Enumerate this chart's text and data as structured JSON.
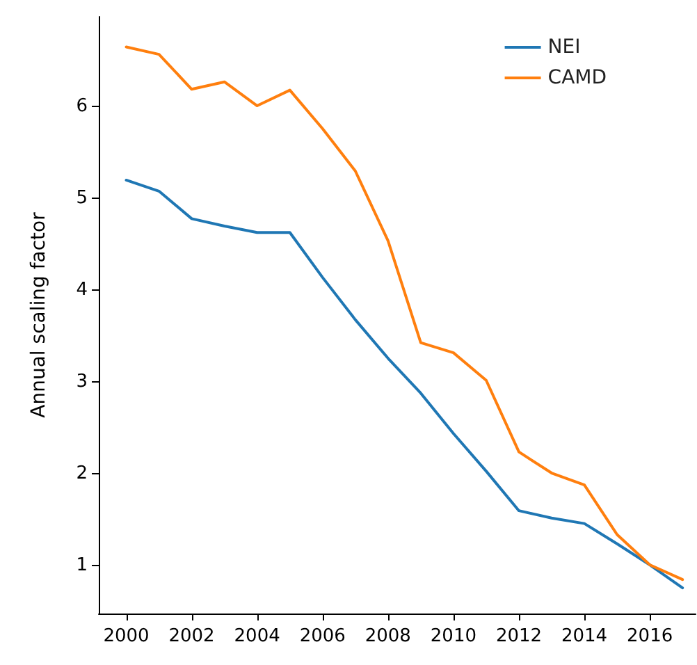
{
  "chart_data": {
    "type": "line",
    "ylabel": "Annual scaling factor",
    "x": [
      2000,
      2001,
      2002,
      2003,
      2004,
      2005,
      2006,
      2007,
      2008,
      2009,
      2010,
      2011,
      2012,
      2013,
      2014,
      2015,
      2016,
      2017
    ],
    "series": [
      {
        "name": "NEI",
        "color": "#1f77b4",
        "values": [
          5.2,
          5.08,
          4.78,
          4.7,
          4.63,
          4.63,
          4.14,
          3.68,
          3.26,
          2.88,
          2.44,
          2.03,
          1.6,
          1.52,
          1.46,
          1.24,
          1.01,
          0.76
        ]
      },
      {
        "name": "CAMD",
        "color": "#ff7f0e",
        "values": [
          6.65,
          6.57,
          6.19,
          6.27,
          6.01,
          6.18,
          5.76,
          5.3,
          4.54,
          3.43,
          3.32,
          3.02,
          2.24,
          2.01,
          1.88,
          1.34,
          1.01,
          0.85
        ]
      }
    ],
    "xlim": [
      1999.16,
      2017.4
    ],
    "xticks": [
      2000,
      2002,
      2004,
      2006,
      2008,
      2010,
      2012,
      2014,
      2016
    ],
    "ylim": [
      0.48,
      6.98
    ],
    "yticks": [
      1,
      2,
      3,
      4,
      5,
      6
    ],
    "legend": "top right",
    "grid": false,
    "marker": "none",
    "line_style": "solid"
  }
}
